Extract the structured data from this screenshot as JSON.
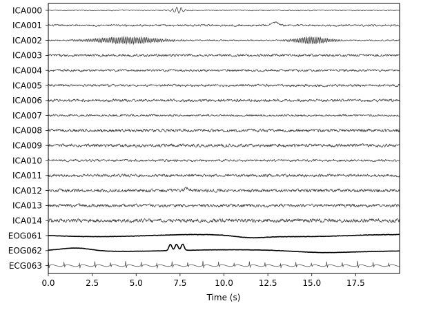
{
  "chart_data": {
    "type": "line",
    "title": "",
    "xlabel": "Time (s)",
    "ylabel": "",
    "xlim": [
      0,
      20
    ],
    "xticks": [
      "0.0",
      "2.5",
      "5.0",
      "7.5",
      "10.0",
      "12.5",
      "15.0",
      "17.5"
    ],
    "xtick_values": [
      0,
      2.5,
      5,
      7.5,
      10,
      12.5,
      15,
      17.5
    ],
    "grid": false,
    "channels": [
      {
        "name": "ICA000",
        "kind": "ica",
        "color": "#444444",
        "noise": 0.6,
        "osc": 0,
        "bursts": [
          {
            "center": 7.4,
            "width": 0.35,
            "amp": 4.5,
            "freq": 4.0
          }
        ],
        "spikes": []
      },
      {
        "name": "ICA001",
        "kind": "ica",
        "color": "#444444",
        "noise": 1.2,
        "osc": 0,
        "bursts": [],
        "spikes": [
          {
            "center": 12.9,
            "amp": 4.5,
            "width": 0.25
          }
        ]
      },
      {
        "name": "ICA002",
        "kind": "ica",
        "color": "#444444",
        "noise": 0.8,
        "osc": 0,
        "bursts": [
          {
            "center": 4.5,
            "width": 2.2,
            "amp": 5.0,
            "freq": 10.0
          },
          {
            "center": 15.0,
            "width": 1.2,
            "amp": 5.0,
            "freq": 10.0
          }
        ],
        "spikes": []
      },
      {
        "name": "ICA003",
        "kind": "ica",
        "color": "#444444",
        "noise": 1.6,
        "osc": 0,
        "bursts": [],
        "spikes": []
      },
      {
        "name": "ICA004",
        "kind": "ica",
        "color": "#444444",
        "noise": 1.4,
        "osc": 0,
        "bursts": [],
        "spikes": []
      },
      {
        "name": "ICA005",
        "kind": "ica",
        "color": "#444444",
        "noise": 1.5,
        "osc": 0,
        "bursts": [],
        "spikes": []
      },
      {
        "name": "ICA006",
        "kind": "ica",
        "color": "#444444",
        "noise": 1.7,
        "osc": 0,
        "bursts": [],
        "spikes": []
      },
      {
        "name": "ICA007",
        "kind": "ica",
        "color": "#444444",
        "noise": 1.3,
        "osc": 0,
        "bursts": [],
        "spikes": []
      },
      {
        "name": "ICA008",
        "kind": "ica",
        "color": "#444444",
        "noise": 1.9,
        "osc": 0,
        "bursts": [],
        "spikes": []
      },
      {
        "name": "ICA009",
        "kind": "ica",
        "color": "#444444",
        "noise": 2.0,
        "osc": 0,
        "bursts": [],
        "spikes": []
      },
      {
        "name": "ICA010",
        "kind": "ica",
        "color": "#444444",
        "noise": 1.4,
        "osc": 0,
        "bursts": [],
        "spikes": []
      },
      {
        "name": "ICA011",
        "kind": "ica",
        "color": "#444444",
        "noise": 1.8,
        "osc": 0,
        "bursts": [],
        "spikes": []
      },
      {
        "name": "ICA012",
        "kind": "ica",
        "color": "#444444",
        "noise": 2.0,
        "osc": 0,
        "bursts": [],
        "spikes": [
          {
            "center": 7.9,
            "amp": 3.0,
            "width": 0.2
          }
        ]
      },
      {
        "name": "ICA013",
        "kind": "ica",
        "color": "#444444",
        "noise": 2.0,
        "osc": 0,
        "bursts": [],
        "spikes": []
      },
      {
        "name": "ICA014",
        "kind": "ica",
        "color": "#444444",
        "noise": 2.3,
        "osc": 0,
        "bursts": [],
        "spikes": []
      },
      {
        "name": "EOG061",
        "kind": "eog",
        "color": "#000000",
        "noise": 0.5,
        "osc": 0,
        "bursts": [],
        "spikes": []
      },
      {
        "name": "EOG062",
        "kind": "eog2",
        "color": "#000000",
        "noise": 0.4,
        "osc": 0,
        "bursts": [],
        "spikes": [
          {
            "center": 6.95,
            "amp": 9.0,
            "width": 0.12
          },
          {
            "center": 7.3,
            "amp": 9.0,
            "width": 0.12
          },
          {
            "center": 7.65,
            "amp": 9.0,
            "width": 0.12
          }
        ]
      },
      {
        "name": "ECG063",
        "kind": "ecg",
        "color": "#555555",
        "noise": 0.3,
        "osc": 0,
        "bursts": [],
        "spikes": []
      }
    ]
  }
}
